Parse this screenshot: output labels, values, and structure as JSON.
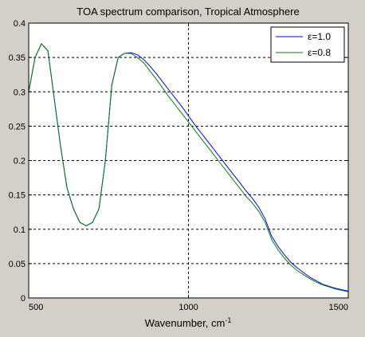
{
  "figure": {
    "background": "#d4d0c8"
  },
  "chart_data": {
    "type": "line",
    "title": "TOA spectrum comparison, Tropical Atmosphere",
    "xlabel": "Wavenumber, cm",
    "xlabel_superscript": "-1",
    "ylabel": "",
    "xlim": [
      500,
      1500
    ],
    "ylim": [
      0,
      0.4
    ],
    "xticks": [
      500,
      1000,
      1500
    ],
    "xtick_labels": [
      "500",
      "1000",
      "1500"
    ],
    "yticks": [
      0,
      0.05,
      0.1,
      0.15,
      0.2,
      0.25,
      0.3,
      0.35,
      0.4
    ],
    "ytick_labels": [
      "0",
      "0.05",
      "0.1",
      "0.15",
      "0.2",
      "0.25",
      "0.3",
      "0.35",
      "0.4"
    ],
    "grid": true,
    "grid_style": "dashed",
    "legend_position": "top-right",
    "series": [
      {
        "name": "ε=1.0",
        "color": "#0000ff",
        "x": [
          500,
          520,
          540,
          560,
          580,
          600,
          620,
          640,
          660,
          680,
          700,
          720,
          740,
          760,
          780,
          800,
          820,
          840,
          860,
          880,
          900,
          920,
          940,
          960,
          980,
          1000,
          1020,
          1040,
          1060,
          1080,
          1100,
          1120,
          1140,
          1160,
          1180,
          1200,
          1220,
          1240,
          1260,
          1280,
          1300,
          1320,
          1340,
          1360,
          1380,
          1400,
          1420,
          1440,
          1460,
          1480,
          1500
        ],
        "y": [
          0.3,
          0.35,
          0.37,
          0.36,
          0.29,
          0.22,
          0.16,
          0.13,
          0.11,
          0.105,
          0.11,
          0.13,
          0.2,
          0.31,
          0.35,
          0.356,
          0.357,
          0.354,
          0.347,
          0.337,
          0.326,
          0.314,
          0.302,
          0.29,
          0.278,
          0.265,
          0.252,
          0.24,
          0.228,
          0.216,
          0.204,
          0.192,
          0.18,
          0.168,
          0.156,
          0.145,
          0.132,
          0.115,
          0.09,
          0.075,
          0.063,
          0.052,
          0.044,
          0.037,
          0.03,
          0.025,
          0.02,
          0.017,
          0.014,
          0.012,
          0.01
        ]
      },
      {
        "name": "ε=0.8",
        "color": "#008000",
        "x": [
          500,
          520,
          540,
          560,
          580,
          600,
          620,
          640,
          660,
          680,
          700,
          720,
          740,
          760,
          780,
          800,
          820,
          840,
          860,
          880,
          900,
          920,
          940,
          960,
          980,
          1000,
          1020,
          1040,
          1060,
          1080,
          1100,
          1120,
          1140,
          1160,
          1180,
          1200,
          1220,
          1240,
          1260,
          1280,
          1300,
          1320,
          1340,
          1360,
          1380,
          1400,
          1420,
          1440,
          1460,
          1480,
          1500
        ],
        "y": [
          0.3,
          0.35,
          0.37,
          0.36,
          0.29,
          0.22,
          0.16,
          0.13,
          0.11,
          0.105,
          0.11,
          0.13,
          0.2,
          0.31,
          0.35,
          0.356,
          0.356,
          0.35,
          0.342,
          0.33,
          0.318,
          0.305,
          0.292,
          0.28,
          0.268,
          0.256,
          0.244,
          0.232,
          0.22,
          0.208,
          0.196,
          0.184,
          0.172,
          0.16,
          0.148,
          0.138,
          0.126,
          0.11,
          0.085,
          0.07,
          0.058,
          0.048,
          0.04,
          0.034,
          0.028,
          0.023,
          0.019,
          0.016,
          0.013,
          0.011,
          0.009
        ]
      }
    ]
  }
}
